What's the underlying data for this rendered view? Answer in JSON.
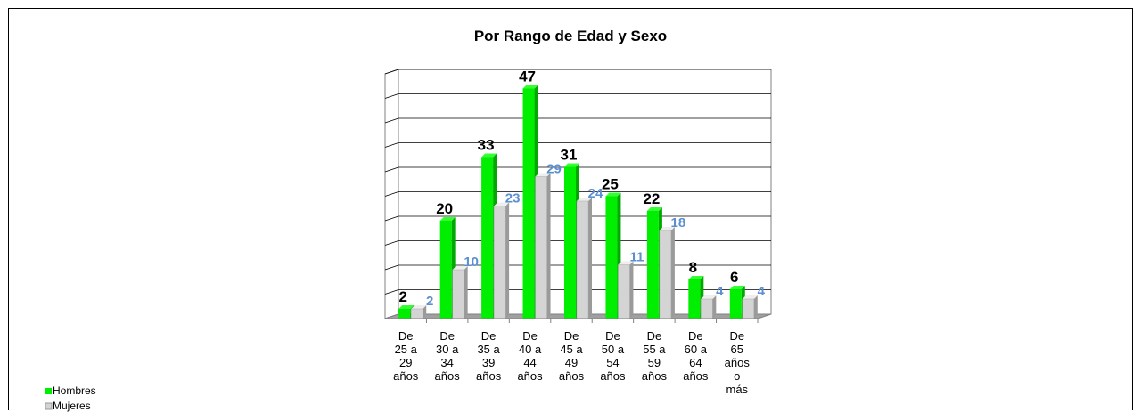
{
  "chart_data": {
    "type": "bar3d",
    "title": "Por Rango de Edad y Sexo",
    "categories": [
      "De 25 a 29 años",
      "De 30 a 34 años",
      "De 35 a 39 años",
      "De 40 a 44 años",
      "De 45 a 49 años",
      "De 50 a 54 años",
      "De 55 a 59 años",
      "De 60 a 64 años",
      "De 65 años o más"
    ],
    "series": [
      {
        "name": "Hombres",
        "color": "#00ee00",
        "values": [
          2,
          20,
          33,
          47,
          31,
          25,
          22,
          8,
          6
        ]
      },
      {
        "name": "Mujeres",
        "color": "#d4d4d4",
        "values": [
          2,
          10,
          23,
          29,
          24,
          11,
          18,
          4,
          4
        ]
      }
    ],
    "ylim": [
      0,
      50
    ],
    "yticks": [
      0,
      5,
      10,
      15,
      20,
      25,
      30,
      35,
      40,
      45,
      50
    ],
    "grid": true,
    "legend": "bottom-left"
  }
}
